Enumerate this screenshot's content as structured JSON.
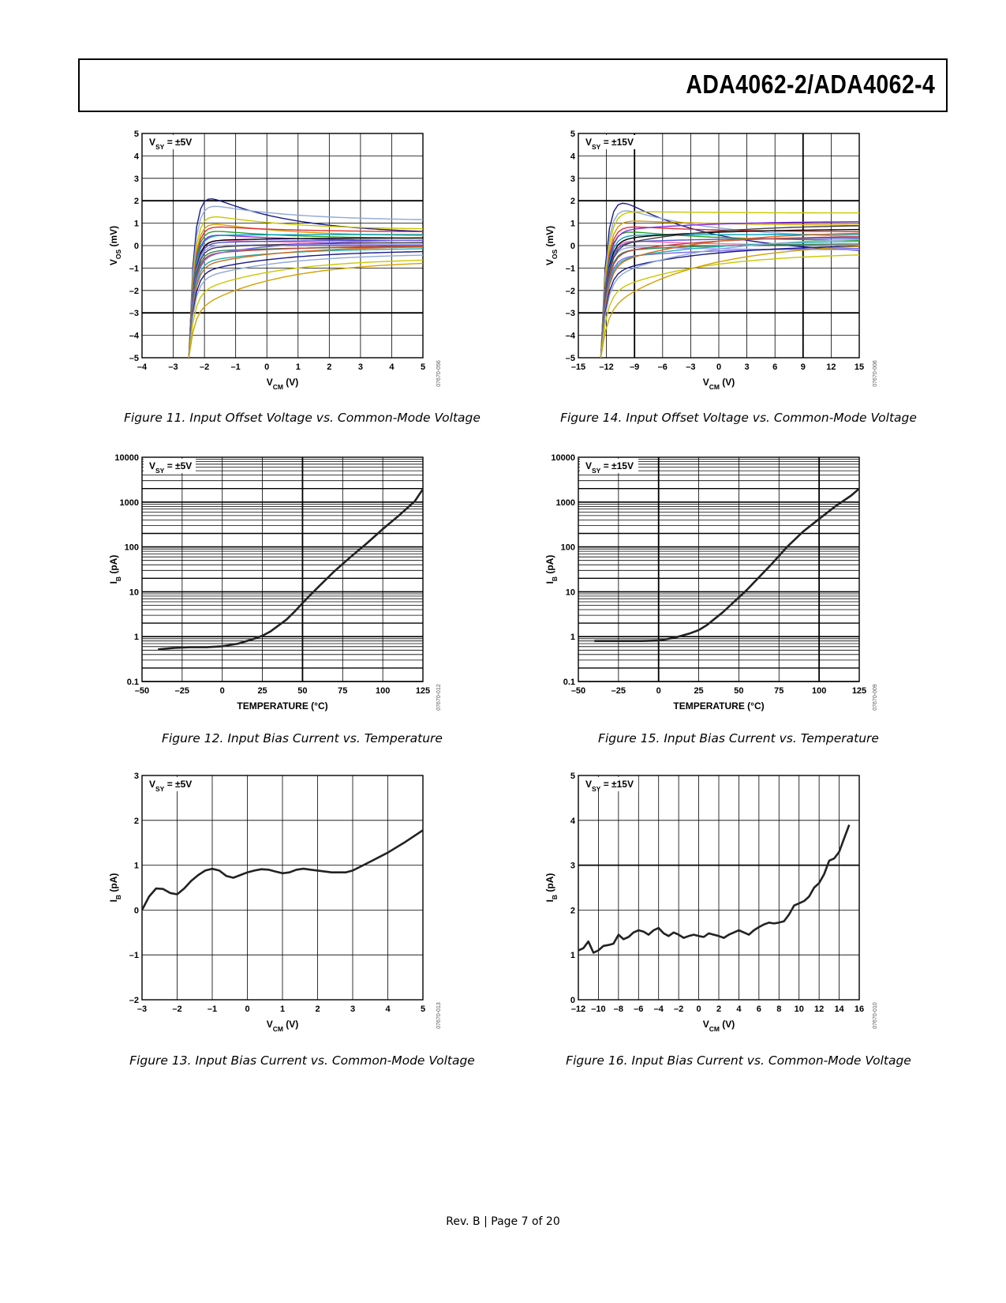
{
  "header": {
    "title": "ADA4062-2/ADA4062-4"
  },
  "footer": {
    "text": "Rev. B | Page 7 of 20"
  },
  "colors": {
    "line": "#222222",
    "grid": "#000000",
    "multi": [
      "#1a1a8c",
      "#8fa8d8",
      "#c8c800",
      "#d4a000",
      "#e03030",
      "#2a9d2a",
      "#8a2be2",
      "#00a0c0",
      "#ff69b4",
      "#000000",
      "#5050d0",
      "#a0a0ff",
      "#404040",
      "#2e8b57",
      "#c04040",
      "#7b68ee",
      "#20b2aa",
      "#d2691e"
    ]
  },
  "chart_data": [
    {
      "id": "fig11",
      "type": "line",
      "caption": "Figure 11. Input Offset Voltage vs. Common-Mode Voltage",
      "annotation": "V_SY = ±5V",
      "ann_main": "V",
      "ann_sub": "SY",
      "ann_rest": " = ±5V",
      "xlabel_main": "V",
      "xlabel_sub": "CM",
      "xlabel_rest": " (V)",
      "ylabel_main": "V",
      "ylabel_sub": "OS",
      "ylabel_rest": " (mV)",
      "xlim": [
        -4,
        5
      ],
      "ylim": [
        -5,
        5
      ],
      "yscale": "linear",
      "xticks": [
        -4,
        -3,
        -2,
        -1,
        0,
        1,
        2,
        3,
        4,
        5
      ],
      "xtick_labels": [
        "–4",
        "–3",
        "–2",
        "–1",
        "0",
        "1",
        "2",
        "3",
        "4",
        "5"
      ],
      "yticks": [
        -5,
        -4,
        -3,
        -2,
        -1,
        0,
        1,
        2,
        3,
        4,
        5
      ],
      "ytick_labels": [
        "–5",
        "–4",
        "–3",
        "–2",
        "–1",
        "0",
        "1",
        "2",
        "3",
        "4",
        "5"
      ],
      "heavy_y": [
        2,
        -3
      ],
      "heavy_x": [],
      "code": "07670-056",
      "family": {
        "x_min": -2.5,
        "x_max": 5,
        "peaks": [
          2.7,
          2.05,
          1.55,
          1.2,
          0.95,
          0.8,
          0.6,
          0.45,
          0.3,
          0.2,
          0.1,
          0.0,
          -0.15,
          -0.3,
          -0.45,
          -0.6,
          -0.8,
          -1.0,
          -1.3,
          -1.6,
          -2.2,
          -3.0
        ],
        "ends": [
          0.5,
          1.1,
          0.7,
          0.4,
          0.6,
          0.3,
          0.2,
          0.5,
          0.1,
          0.35,
          0.25,
          0.05,
          0.15,
          -0.05,
          0.0,
          0.3,
          -0.1,
          0.0,
          -0.2,
          -0.35,
          -0.55,
          -0.65
        ]
      }
    },
    {
      "id": "fig14",
      "type": "line",
      "caption": "Figure 14. Input Offset Voltage vs. Common-Mode Voltage",
      "annotation": "V_SY = ±15V",
      "ann_main": "V",
      "ann_sub": "SY",
      "ann_rest": " = ±15V",
      "xlabel_main": "V",
      "xlabel_sub": "CM",
      "xlabel_rest": " (V)",
      "ylabel_main": "V",
      "ylabel_sub": "OS",
      "ylabel_rest": " (mV)",
      "xlim": [
        -15,
        15
      ],
      "ylim": [
        -5,
        5
      ],
      "yscale": "linear",
      "xticks": [
        -15,
        -12,
        -9,
        -6,
        -3,
        0,
        3,
        6,
        9,
        12,
        15
      ],
      "xtick_labels": [
        "–15",
        "–12",
        "–9",
        "–6",
        "–3",
        "0",
        "3",
        "6",
        "9",
        "12",
        "15"
      ],
      "yticks": [
        -5,
        -4,
        -3,
        -2,
        -1,
        0,
        1,
        2,
        3,
        4,
        5
      ],
      "ytick_labels": [
        "–5",
        "–4",
        "–3",
        "–2",
        "–1",
        "0",
        "1",
        "2",
        "3",
        "4",
        "5"
      ],
      "heavy_y": [
        2,
        -3
      ],
      "heavy_x": [
        -9,
        9
      ],
      "code": "07670-006",
      "family": {
        "x_min": -12.6,
        "x_max": 15,
        "peaks": [
          2.7,
          2.05,
          1.55,
          1.2,
          0.95,
          0.8,
          0.6,
          0.45,
          0.3,
          0.2,
          0.1,
          0.0,
          -0.15,
          -0.3,
          -0.45,
          -0.6,
          -0.8,
          -1.0,
          -1.3,
          -1.6,
          -2.2,
          -3.0
        ],
        "ends": [
          -0.4,
          0.3,
          1.45,
          0.9,
          0.6,
          0.2,
          1.1,
          0.5,
          0.0,
          0.75,
          0.35,
          -0.2,
          0.95,
          0.1,
          0.45,
          -0.1,
          0.25,
          0.65,
          0.05,
          0.4,
          -0.3,
          0.15
        ]
      }
    },
    {
      "id": "fig12",
      "type": "line",
      "caption": "Figure 12. Input Bias Current vs. Temperature",
      "annotation": "V_SY = ±5V",
      "ann_main": "V",
      "ann_sub": "SY",
      "ann_rest": " = ±5V",
      "xlabel_main": "TEMPERATURE (°C)",
      "xlabel_sub": "",
      "xlabel_rest": "",
      "ylabel_main": "I",
      "ylabel_sub": "B",
      "ylabel_rest": " (pA)",
      "xlim": [
        -50,
        125
      ],
      "ylim": [
        0.1,
        10000
      ],
      "yscale": "log",
      "xticks": [
        -50,
        -25,
        0,
        25,
        50,
        75,
        100,
        125
      ],
      "xtick_labels": [
        "–50",
        "–25",
        "0",
        "25",
        "50",
        "75",
        "100",
        "125"
      ],
      "yticks": [
        0.1,
        1,
        10,
        100,
        1000,
        10000
      ],
      "ytick_labels": [
        "0.1",
        "1",
        "10",
        "100",
        "1000",
        "10000"
      ],
      "heavy_y": [],
      "heavy_x": [
        50
      ],
      "code": "07670-012",
      "x": [
        -40,
        -30,
        -20,
        -10,
        0,
        10,
        20,
        25,
        30,
        40,
        45,
        50,
        55,
        60,
        70,
        80,
        90,
        100,
        110,
        120,
        125
      ],
      "y": [
        0.52,
        0.56,
        0.58,
        0.58,
        0.61,
        0.7,
        0.9,
        1.05,
        1.3,
        2.4,
        3.6,
        5.6,
        8.6,
        13,
        29,
        60,
        120,
        250,
        500,
        1050,
        1950
      ]
    },
    {
      "id": "fig15",
      "type": "line",
      "caption": "Figure 15. Input Bias Current vs. Temperature",
      "annotation": "V_SY = ±15V",
      "ann_main": "V",
      "ann_sub": "SY",
      "ann_rest": " = ±15V",
      "xlabel_main": "TEMPERATURE (°C)",
      "xlabel_sub": "",
      "xlabel_rest": "",
      "ylabel_main": "I",
      "ylabel_sub": "B",
      "ylabel_rest": " (pA)",
      "xlim": [
        -50,
        125
      ],
      "ylim": [
        0.1,
        10000
      ],
      "yscale": "log",
      "xticks": [
        -50,
        -25,
        0,
        25,
        50,
        75,
        100,
        125
      ],
      "xtick_labels": [
        "–50",
        "–25",
        "0",
        "25",
        "50",
        "75",
        "100",
        "125"
      ],
      "yticks": [
        0.1,
        1,
        10,
        100,
        1000,
        10000
      ],
      "ytick_labels": [
        "0.1",
        "1",
        "10",
        "100",
        "1000",
        "10000"
      ],
      "heavy_y": [],
      "heavy_x": [
        0,
        100
      ],
      "code": "07670-009",
      "x": [
        -40,
        -30,
        -20,
        -10,
        0,
        10,
        20,
        25,
        30,
        40,
        50,
        55,
        60,
        70,
        80,
        90,
        100,
        110,
        120,
        125
      ],
      "y": [
        0.8,
        0.8,
        0.8,
        0.8,
        0.82,
        0.95,
        1.2,
        1.4,
        1.8,
        3.5,
        7.5,
        11,
        17,
        40,
        100,
        220,
        420,
        800,
        1400,
        2000
      ]
    },
    {
      "id": "fig13",
      "type": "line",
      "caption": "Figure 13. Input Bias Current vs. Common-Mode Voltage",
      "annotation": "V_SY = ±5V",
      "ann_main": "V",
      "ann_sub": "SY",
      "ann_rest": " = ±5V",
      "xlabel_main": "V",
      "xlabel_sub": "CM",
      "xlabel_rest": " (V)",
      "ylabel_main": "I",
      "ylabel_sub": "B",
      "ylabel_rest": " (pA)",
      "xlim": [
        -3,
        5
      ],
      "ylim": [
        -2,
        3
      ],
      "yscale": "linear",
      "xticks": [
        -3,
        -2,
        -1,
        0,
        1,
        2,
        3,
        4,
        5
      ],
      "xtick_labels": [
        "–3",
        "–2",
        "–1",
        "0",
        "1",
        "2",
        "3",
        "4",
        "5"
      ],
      "yticks": [
        -2,
        -1,
        0,
        1,
        2,
        3
      ],
      "ytick_labels": [
        "–2",
        "–1",
        "0",
        "1",
        "2",
        "3"
      ],
      "heavy_y": [],
      "heavy_x": [],
      "code": "07670-013",
      "x": [
        -3,
        -2.8,
        -2.6,
        -2.4,
        -2.2,
        -2.0,
        -1.8,
        -1.6,
        -1.4,
        -1.2,
        -1.0,
        -0.8,
        -0.6,
        -0.4,
        -0.2,
        0,
        0.2,
        0.4,
        0.6,
        0.8,
        1.0,
        1.2,
        1.4,
        1.6,
        1.8,
        2.0,
        2.2,
        2.4,
        2.6,
        2.8,
        3.0,
        3.2,
        3.5,
        4.0,
        4.5,
        5.0
      ],
      "y": [
        0,
        0.3,
        0.48,
        0.47,
        0.38,
        0.35,
        0.48,
        0.65,
        0.78,
        0.88,
        0.92,
        0.88,
        0.76,
        0.72,
        0.78,
        0.84,
        0.88,
        0.91,
        0.9,
        0.86,
        0.82,
        0.84,
        0.9,
        0.92,
        0.9,
        0.88,
        0.86,
        0.84,
        0.84,
        0.84,
        0.88,
        0.96,
        1.08,
        1.28,
        1.52,
        1.78
      ]
    },
    {
      "id": "fig16",
      "type": "line",
      "caption": "Figure 16. Input Bias Current vs. Common-Mode Voltage",
      "annotation": "V_SY = ±15V",
      "ann_main": "V",
      "ann_sub": "SY",
      "ann_rest": " = ±15V",
      "xlabel_main": "V",
      "xlabel_sub": "CM",
      "xlabel_rest": " (V)",
      "ylabel_main": "I",
      "ylabel_sub": "B",
      "ylabel_rest": " (pA)",
      "xlim": [
        -12,
        16
      ],
      "ylim": [
        0,
        5
      ],
      "yscale": "linear",
      "xticks": [
        -12,
        -10,
        -8,
        -6,
        -4,
        -2,
        0,
        2,
        4,
        6,
        8,
        10,
        12,
        14,
        16
      ],
      "xtick_labels": [
        "–12",
        "–10",
        "–8",
        "–6",
        "–4",
        "–2",
        "0",
        "2",
        "4",
        "6",
        "8",
        "10",
        "12",
        "14",
        "16"
      ],
      "yticks": [
        0,
        1,
        2,
        3,
        4,
        5
      ],
      "ytick_labels": [
        "0",
        "1",
        "2",
        "3",
        "4",
        "5"
      ],
      "heavy_y": [
        3
      ],
      "heavy_x": [],
      "code": "07670-010",
      "x": [
        -12,
        -11.5,
        -11,
        -10.5,
        -10,
        -9.5,
        -9,
        -8.5,
        -8,
        -7.5,
        -7,
        -6.5,
        -6,
        -5.5,
        -5,
        -4.5,
        -4,
        -3.5,
        -3,
        -2.5,
        -2,
        -1.5,
        -1,
        -0.5,
        0,
        0.5,
        1,
        1.5,
        2,
        2.5,
        3,
        3.5,
        4,
        4.5,
        5,
        5.5,
        6,
        6.5,
        7,
        7.5,
        8,
        8.5,
        9,
        9.5,
        10,
        10.5,
        11,
        11.5,
        12,
        12.5,
        13,
        13.5,
        14,
        14.5,
        15
      ],
      "y": [
        1.1,
        1.15,
        1.3,
        1.05,
        1.1,
        1.2,
        1.22,
        1.25,
        1.45,
        1.35,
        1.4,
        1.5,
        1.55,
        1.52,
        1.45,
        1.55,
        1.6,
        1.48,
        1.42,
        1.5,
        1.45,
        1.38,
        1.42,
        1.45,
        1.42,
        1.4,
        1.48,
        1.45,
        1.42,
        1.38,
        1.45,
        1.5,
        1.55,
        1.5,
        1.45,
        1.55,
        1.62,
        1.68,
        1.72,
        1.7,
        1.72,
        1.75,
        1.9,
        2.1,
        2.15,
        2.2,
        2.3,
        2.5,
        2.6,
        2.8,
        3.1,
        3.15,
        3.3,
        3.6,
        3.9
      ]
    }
  ]
}
